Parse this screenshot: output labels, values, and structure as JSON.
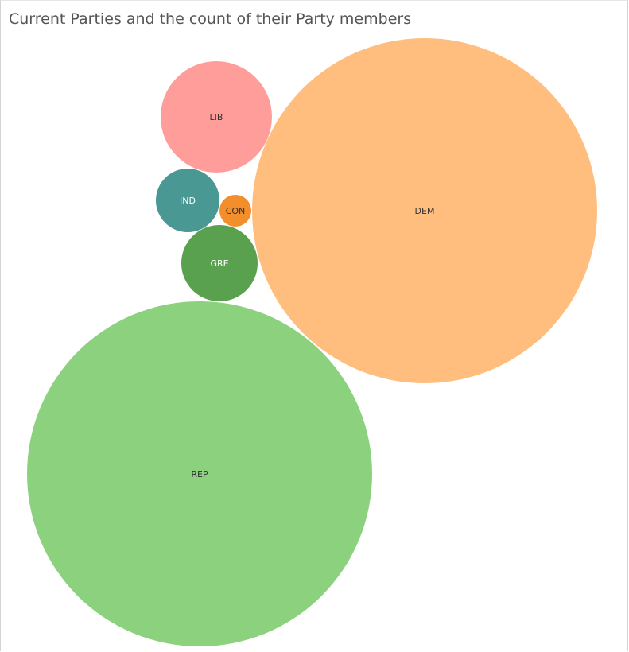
{
  "chart_data": {
    "type": "bubble",
    "title": "Current Parties and the count of their Party members",
    "bubbles": [
      {
        "label": "REP",
        "size": 100,
        "color": "#8cd17d",
        "label_color": "#333333"
      },
      {
        "label": "DEM",
        "size": 100,
        "color": "#ffbe7d",
        "label_color": "#333333"
      },
      {
        "label": "LIB",
        "size": 10.5,
        "color": "#ff9d9a",
        "label_color": "#333333"
      },
      {
        "label": "GRE",
        "size": 5,
        "color": "#59a14f",
        "label_color": "#ffffff"
      },
      {
        "label": "IND",
        "size": 3.5,
        "color": "#499894",
        "label_color": "#ffffff"
      },
      {
        "label": "CON",
        "size": 0.9,
        "color": "#f28e2b",
        "label_color": "#333333"
      }
    ]
  }
}
